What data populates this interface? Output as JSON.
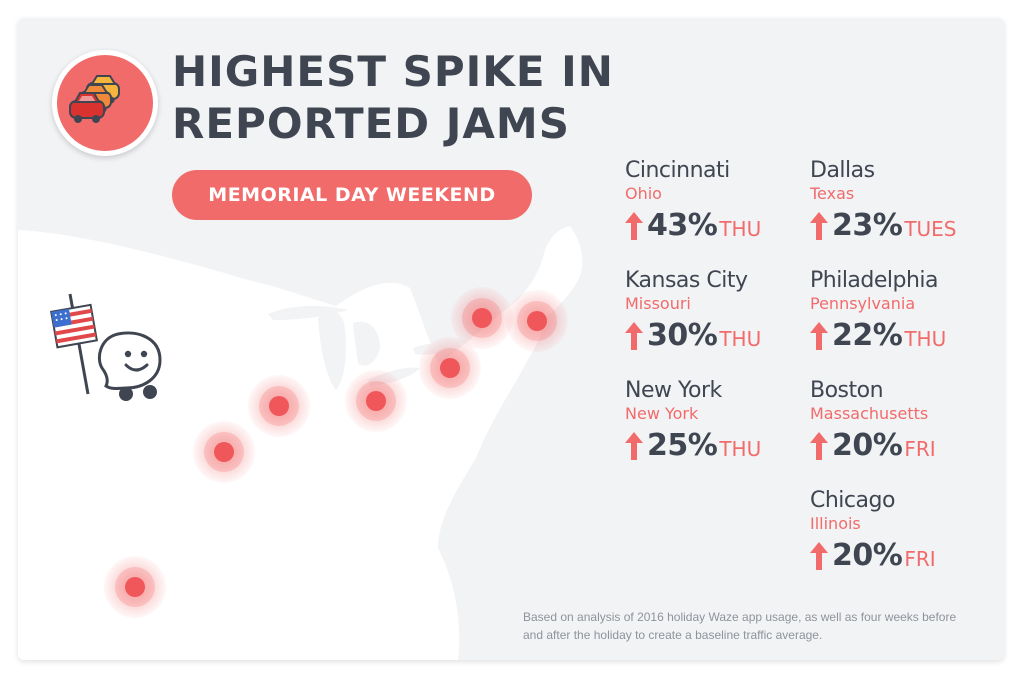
{
  "title": {
    "line1": "HIGHEST SPIKE IN",
    "line2": "REPORTED JAMS"
  },
  "subtitle": "MEMORIAL DAY WEEKEND",
  "stats": [
    {
      "city": "Cincinnati",
      "state": "Ohio",
      "percent": "43%",
      "day": "THU"
    },
    {
      "city": "Dallas",
      "state": "Texas",
      "percent": "23%",
      "day": "TUES"
    },
    {
      "city": "Kansas City",
      "state": "Missouri",
      "percent": "30%",
      "day": "THU"
    },
    {
      "city": "Philadelphia",
      "state": "Pennsylvania",
      "percent": "22%",
      "day": "THU"
    },
    {
      "city": "New York",
      "state": "New York",
      "percent": "25%",
      "day": "THU"
    },
    {
      "city": "Boston",
      "state": "Massachusetts",
      "percent": "20%",
      "day": "FRI"
    },
    {
      "city": "Chicago",
      "state": "Illinois",
      "percent": "20%",
      "day": "FRI"
    }
  ],
  "footnote": "Based on analysis of 2016 holiday Waze app usage, as well as four weeks before and after the holiday to create a baseline traffic average.",
  "icons": [
    "cars-icon",
    "american-flag-icon",
    "waze-mascot-icon",
    "up-arrow-icon",
    "hotspot-marker"
  ],
  "colors": {
    "accent": "#f26b6b",
    "text": "#3f4651",
    "background": "#f2f3f5",
    "land": "#ffffff",
    "note": "#8e939b"
  }
}
